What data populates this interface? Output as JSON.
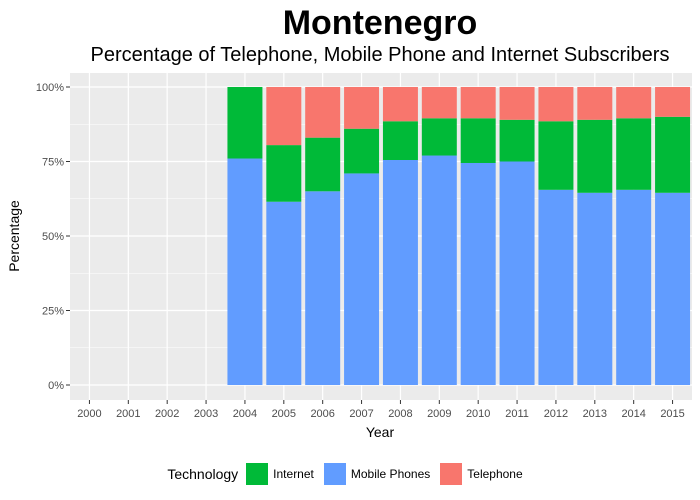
{
  "chart_data": {
    "type": "bar",
    "stacked": true,
    "title": "Montenegro",
    "subtitle": "Percentage of Telephone, Mobile Phone and Internet Subscribers",
    "xlabel": "Year",
    "ylabel": "Percentage",
    "ylim": [
      0,
      100
    ],
    "yticks": [
      "0%",
      "25%",
      "50%",
      "75%",
      "100%"
    ],
    "ytick_values": [
      0,
      25,
      50,
      75,
      100
    ],
    "categories": [
      "2000",
      "2001",
      "2002",
      "2003",
      "2004",
      "2005",
      "2006",
      "2007",
      "2008",
      "2009",
      "2010",
      "2011",
      "2012",
      "2013",
      "2014",
      "2015"
    ],
    "series": [
      {
        "name": "Mobile Phones",
        "color": "#619CFF",
        "values": [
          null,
          null,
          null,
          null,
          76,
          61.5,
          65,
          71,
          75.5,
          77,
          74.5,
          75,
          65.5,
          64.5,
          65.5,
          64.5
        ]
      },
      {
        "name": "Internet",
        "color": "#00BA38",
        "values": [
          null,
          null,
          null,
          null,
          24,
          19,
          18,
          15,
          13,
          12.5,
          15,
          14,
          23,
          24.5,
          24,
          25.5
        ]
      },
      {
        "name": "Telephone",
        "color": "#F8766D",
        "values": [
          null,
          null,
          null,
          null,
          0,
          19.5,
          17,
          14,
          11.5,
          10.5,
          10.5,
          11,
          11.5,
          11,
          10.5,
          10
        ]
      }
    ],
    "legend": {
      "title": "Technology",
      "position": "bottom",
      "entries": [
        {
          "label": "Internet",
          "color": "#00BA38"
        },
        {
          "label": "Mobile Phones",
          "color": "#619CFF"
        },
        {
          "label": "Telephone",
          "color": "#F8766D"
        }
      ]
    },
    "grid": true,
    "panel_color": "#EBEBEB"
  }
}
